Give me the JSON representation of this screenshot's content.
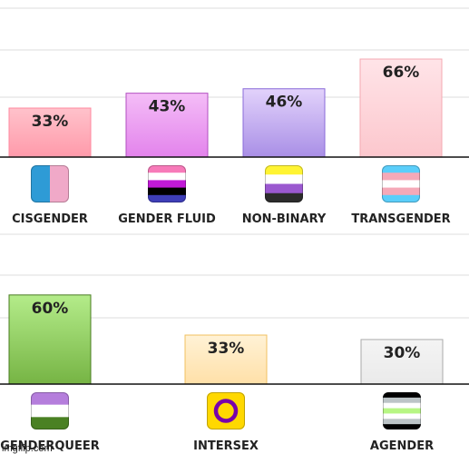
{
  "chart_data": [
    {
      "type": "bar",
      "categories": [
        "CISGENDER",
        "GENDER FLUID",
        "NON-BINARY",
        "TRANSGENDER"
      ],
      "values": [
        33,
        43,
        46,
        66
      ],
      "labels": [
        "33%",
        "43%",
        "46%",
        "66%"
      ],
      "ylim": [
        0,
        100
      ],
      "grid": true,
      "bar_colors": [
        [
          "#ffc2cb",
          "#ff9aaa",
          "#ff8aa0"
        ],
        [
          "#f4bdf7",
          "#e383ec",
          "#b24fc0"
        ],
        [
          "#e2d2fb",
          "#a98fe6",
          "#8a6bd9"
        ],
        [
          "#ffe4e8",
          "#fcc7cd",
          "#f4a9b2"
        ]
      ],
      "flags": [
        "cisgender-flag-icon",
        "gender-fluid-flag-icon",
        "non-binary-flag-icon",
        "transgender-flag-icon"
      ]
    },
    {
      "type": "bar",
      "categories": [
        "GENDERQUEER",
        "INTERSEX",
        "AGENDER"
      ],
      "values": [
        60,
        33,
        30
      ],
      "labels": [
        "60%",
        "33%",
        "30%"
      ],
      "ylim": [
        0,
        100
      ],
      "grid": true,
      "bar_colors": [
        [
          "#b4ec8a",
          "#76b444",
          "#4a7c22"
        ],
        [
          "#fff2d6",
          "#ffe0a8",
          "#f0c060"
        ],
        [
          "#f4f4f4",
          "#eaeaea",
          "#aaaaaa"
        ]
      ],
      "flags": [
        "genderqueer-flag-icon",
        "intersex-flag-icon",
        "agender-flag-icon"
      ]
    }
  ],
  "watermark": "imgflip.com"
}
